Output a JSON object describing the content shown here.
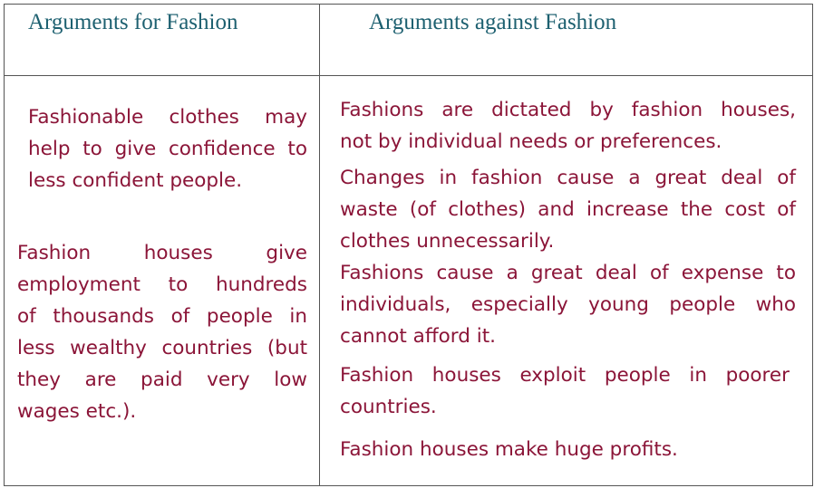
{
  "table": {
    "headers": {
      "for": "Arguments for  Fashion",
      "against": "Arguments against Fashion"
    },
    "for_items": [
      {
        "lines": [
          "Fashionable clothes may",
          "help to give confidence to",
          "less confident people."
        ]
      },
      {
        "lines": [
          "Fashion houses give",
          "employment to hundreds",
          "of thousands of people in",
          "less wealthy countries (but",
          "they are paid very low",
          "wages etc.)."
        ]
      }
    ],
    "against_items": [
      {
        "lines": [
          "Fashions are dictated by fashion houses,",
          "not by individual needs or preferences."
        ]
      },
      {
        "lines": [
          "Changes in fashion cause a great deal of",
          "waste (of clothes) and increase the cost of",
          "clothes unnecessarily."
        ]
      },
      {
        "lines": [
          "Fashions cause a great deal of expense to",
          "individuals, especially young people who",
          "cannot afford it."
        ]
      },
      {
        "lines": [
          "Fashion houses exploit people in poorer",
          "countries."
        ]
      },
      {
        "lines": [
          "Fashion houses make huge profits."
        ]
      }
    ],
    "colors": {
      "header_text": "#1d6070",
      "body_text": "#8b1538",
      "border": "#555555"
    }
  }
}
